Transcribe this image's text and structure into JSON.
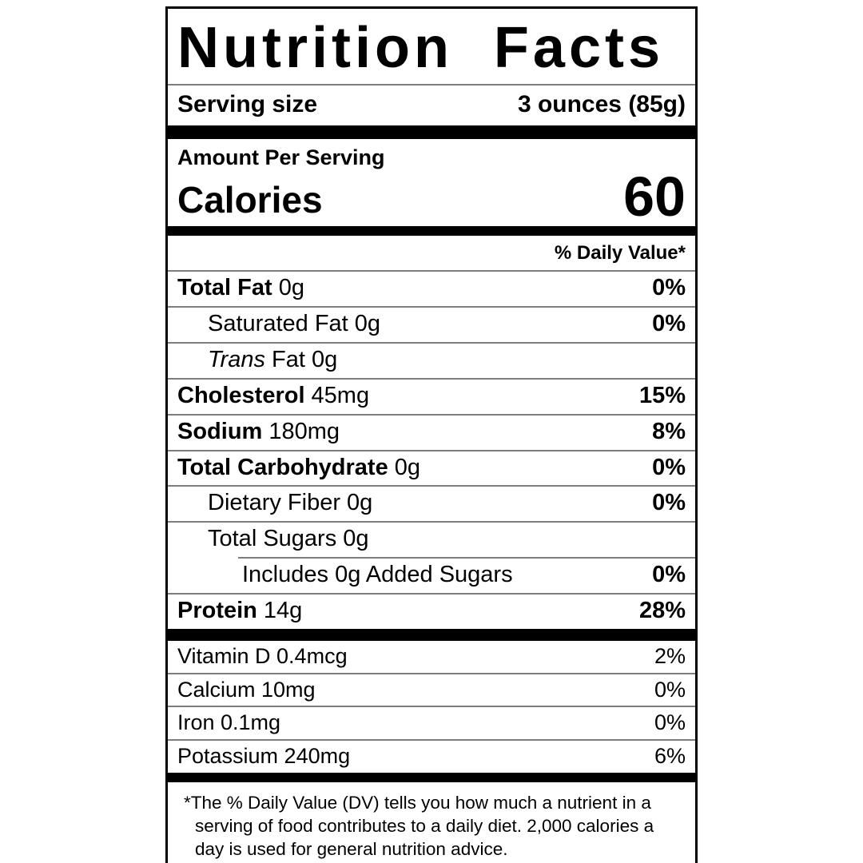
{
  "label": {
    "title": "Nutrition Facts",
    "serving": {
      "label": "Serving size",
      "value": "3 ounces (85g)"
    },
    "amount_per_serving": "Amount Per Serving",
    "calories": {
      "label": "Calories",
      "value": "60"
    },
    "daily_value_header": "% Daily Value*",
    "nutrients": [
      {
        "lead": "Total Fat",
        "tail": "0g",
        "dv": "0%"
      },
      {
        "lead": "",
        "tail": "Saturated Fat 0g",
        "dv": "0%"
      },
      {
        "lead": "Trans",
        "tail": "Fat 0g",
        "dv": ""
      },
      {
        "lead": "Cholesterol",
        "tail": "45mg",
        "dv": "15%"
      },
      {
        "lead": "Sodium",
        "tail": "180mg",
        "dv": "8%"
      },
      {
        "lead": "Total Carbohydrate",
        "tail": "0g",
        "dv": "0%"
      },
      {
        "lead": "",
        "tail": "Dietary Fiber 0g",
        "dv": "0%"
      },
      {
        "lead": "",
        "tail": "Total Sugars 0g",
        "dv": ""
      },
      {
        "lead": "",
        "tail": "Includes 0g Added Sugars",
        "dv": "0%"
      },
      {
        "lead": "Protein",
        "tail": "14g",
        "dv": "28%"
      }
    ],
    "vitamins": [
      {
        "name": "Vitamin D 0.4mcg",
        "dv": "2%"
      },
      {
        "name": "Calcium 10mg",
        "dv": "0%"
      },
      {
        "name": "Iron 0.1mg",
        "dv": "0%"
      },
      {
        "name": "Potassium 240mg",
        "dv": "6%"
      }
    ],
    "footnote": "*The % Daily Value (DV) tells you how much a nutrient in a serving of food contributes to a daily diet. 2,000 calories a day is used for general nutrition advice."
  },
  "colors": {
    "text": "#000000",
    "bars": "#000000",
    "divider": "#7d7d7d",
    "background": "#ffffff"
  }
}
